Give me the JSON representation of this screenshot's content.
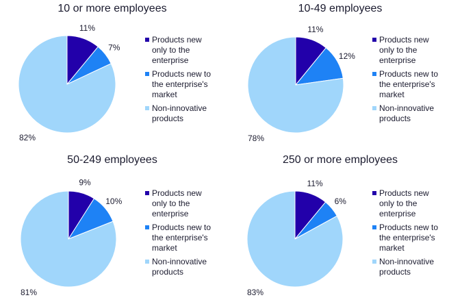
{
  "legend": [
    {
      "label": "Products new only to the enterprise",
      "lines": [
        "Products new",
        "only to the",
        "enterprise"
      ],
      "color": "#2200AA"
    },
    {
      "label": "Products new to the enterprise's market",
      "lines": [
        "Products new to",
        "the enterprise's",
        "market"
      ],
      "color": "#1E82F5"
    },
    {
      "label": "Non-innovative products",
      "lines": [
        "Non-innovative",
        "products"
      ],
      "color": "#A0D6FB"
    }
  ],
  "chart_data": [
    {
      "type": "pie",
      "title": "10 or more employees",
      "categories": [
        "Products new only to the enterprise",
        "Products new to the enterprise's market",
        "Non-innovative products"
      ],
      "values": [
        11,
        7,
        82
      ],
      "labels": [
        "11%",
        "7%",
        "82%"
      ],
      "legend_position": "right"
    },
    {
      "type": "pie",
      "title": "10-49 employees",
      "categories": [
        "Products new only to the enterprise",
        "Products new to the enterprise's market",
        "Non-innovative products"
      ],
      "values": [
        11,
        12,
        78
      ],
      "labels": [
        "11%",
        "12%",
        "78%"
      ],
      "legend_position": "right"
    },
    {
      "type": "pie",
      "title": "50-249 employees",
      "categories": [
        "Products new only to the enterprise",
        "Products new to the enterprise's market",
        "Non-innovative products"
      ],
      "values": [
        9,
        10,
        81
      ],
      "labels": [
        "9%",
        "10%",
        "81%"
      ],
      "legend_position": "right"
    },
    {
      "type": "pie",
      "title": "250 or more employees",
      "categories": [
        "Products new only to the enterprise",
        "Products new to the enterprise's market",
        "Non-innovative products"
      ],
      "values": [
        11,
        6,
        83
      ],
      "labels": [
        "11%",
        "6%",
        "83%"
      ],
      "legend_position": "right"
    }
  ]
}
